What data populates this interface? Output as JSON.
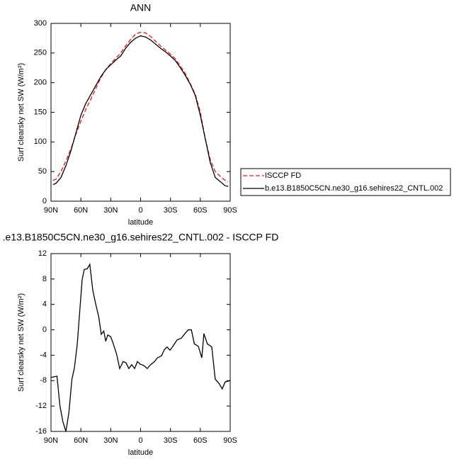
{
  "chart_data": [
    {
      "type": "line",
      "title": "ANN",
      "xlabel": "latitude",
      "ylabel": "Surf clearsky net SW (W/m²)",
      "x": [
        88,
        85,
        80,
        75,
        70,
        65,
        60,
        55,
        50,
        45,
        40,
        35,
        30,
        25,
        20,
        15,
        10,
        5,
        0,
        -5,
        -10,
        -15,
        -20,
        -25,
        -30,
        -35,
        -40,
        -45,
        -50,
        -55,
        -60,
        -65,
        -70,
        -75,
        -80,
        -85,
        -88
      ],
      "series": [
        {
          "name": "ISCCP FD",
          "color": "#e0191c",
          "dashed": true,
          "values": [
            35,
            37,
            50,
            68,
            88,
            113,
            135,
            155,
            172,
            190,
            208,
            222,
            232,
            241,
            250,
            262,
            273,
            282,
            285,
            284,
            278,
            270,
            262,
            255,
            248,
            240,
            228,
            215,
            198,
            180,
            150,
            105,
            70,
            50,
            42,
            35,
            33
          ]
        },
        {
          "name": "b.e13.B1850C5CN.ne30_g16.sehires22_CNTL.002",
          "color": "#000000",
          "dashed": false,
          "values": [
            28,
            30,
            40,
            60,
            85,
            115,
            145,
            165,
            180,
            195,
            210,
            222,
            230,
            238,
            245,
            258,
            268,
            275,
            279,
            277,
            272,
            265,
            258,
            252,
            245,
            237,
            225,
            212,
            197,
            178,
            145,
            105,
            65,
            40,
            33,
            26,
            25
          ]
        }
      ],
      "xlim": [
        90,
        -90
      ],
      "xticks": [
        {
          "value": 90,
          "label": "90N"
        },
        {
          "value": 60,
          "label": "60N"
        },
        {
          "value": 30,
          "label": "30N"
        },
        0,
        {
          "value": -30,
          "label": "30S"
        },
        {
          "value": -60,
          "label": "60S"
        },
        {
          "value": -90,
          "label": "90S"
        }
      ],
      "ylim": [
        0,
        300
      ],
      "yticks": [
        0,
        50,
        100,
        150,
        200,
        250,
        300
      ],
      "legend": "right"
    },
    {
      "type": "line",
      "title": ".e13.B1850C5CN.ne30_g16.sehires22_CNTL.002 - ISCCP FD",
      "xlabel": "latitude",
      "ylabel": "Surf clearsky net SW (W/m²)",
      "x": [
        90,
        84,
        81,
        78,
        75,
        72,
        69,
        66.5,
        63.7,
        58.7,
        56.6,
        53.7,
        51,
        48,
        45,
        42,
        39.5,
        37,
        35,
        33,
        30,
        27.4,
        24,
        21,
        17.5,
        14.6,
        11.8,
        9,
        6,
        3.2,
        0.4,
        -3,
        -6.7,
        -10,
        -14,
        -17,
        -21,
        -24,
        -26.6,
        -29.5,
        -32,
        -36.6,
        -41,
        -45,
        -48,
        -51,
        -54,
        -58,
        -61.5,
        -63.6,
        -67,
        -71.5,
        -75,
        -78.6,
        -82,
        -85,
        -90
      ],
      "values": [
        -7.5,
        -7.3,
        -12,
        -14.5,
        -16,
        -13,
        -7.8,
        -6,
        -2.4,
        7.9,
        9.5,
        9.6,
        10.3,
        6.2,
        4,
        2,
        -0.7,
        -0.2,
        -1.8,
        -0.8,
        -1.1,
        -2.2,
        -3.9,
        -6.1,
        -5,
        -5.2,
        -6.1,
        -5.5,
        -6.1,
        -5,
        -5.4,
        -5.6,
        -6.1,
        -5.5,
        -5,
        -4.4,
        -4.1,
        -3.1,
        -2.7,
        -3.2,
        -2.7,
        -1.6,
        -1.3,
        -0.5,
        0,
        0,
        -2.2,
        -2.6,
        -4.4,
        -0.6,
        -2.2,
        -2.7,
        -7.8,
        -8.4,
        -9.3,
        -8.2,
        -8
      ],
      "color": "#000000",
      "xlim": [
        90,
        -90
      ],
      "xticks": [
        {
          "value": 90,
          "label": "90N"
        },
        {
          "value": 60,
          "label": "60N"
        },
        {
          "value": 30,
          "label": "30N"
        },
        0,
        {
          "value": -30,
          "label": "30S"
        },
        {
          "value": -60,
          "label": "60S"
        },
        {
          "value": -90,
          "label": "90S"
        }
      ],
      "ylim": [
        -16,
        12
      ],
      "yticks": [
        -16,
        -12,
        -8,
        -4,
        0,
        4,
        8,
        12
      ]
    }
  ]
}
